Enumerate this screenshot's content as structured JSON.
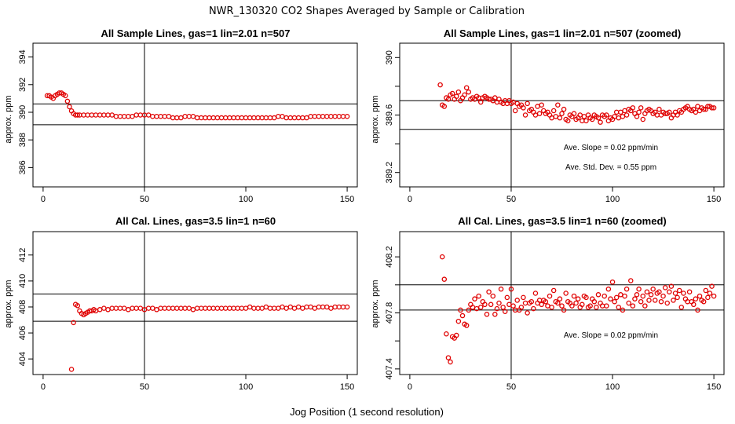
{
  "figure": {
    "title": "NWR_130320  CO2 Shapes Averaged by Sample or Calibration",
    "xlabel": "Jog Position (1 second resolution)"
  },
  "chart_data": [
    {
      "type": "scatter",
      "title": "All Sample Lines, gas=1 lin=2.01 n=507",
      "xlabel": "",
      "ylabel": "approx. ppm",
      "xlim": [
        -5,
        155
      ],
      "ylim": [
        384.6,
        395.0
      ],
      "xticks": [
        0,
        50,
        100,
        150
      ],
      "yticks": [
        386,
        388,
        390,
        392,
        394
      ],
      "vline": 50,
      "hlines": [
        390.6,
        389.1
      ],
      "point_color": "#e00000",
      "x": [
        2,
        3,
        4,
        5,
        6,
        7,
        8,
        9,
        10,
        11,
        12,
        13,
        14,
        15,
        16,
        17,
        18,
        20,
        22,
        24,
        26,
        28,
        30,
        32,
        34,
        36,
        38,
        40,
        42,
        44,
        46,
        48,
        50,
        52,
        54,
        56,
        58,
        60,
        62,
        64,
        66,
        68,
        70,
        72,
        74,
        76,
        78,
        80,
        82,
        84,
        86,
        88,
        90,
        92,
        94,
        96,
        98,
        100,
        102,
        104,
        106,
        108,
        110,
        112,
        114,
        116,
        118,
        120,
        122,
        124,
        126,
        128,
        130,
        132,
        134,
        136,
        138,
        140,
        142,
        144,
        146,
        148,
        150
      ],
      "y": [
        391.2,
        391.2,
        391.1,
        391.0,
        391.2,
        391.3,
        391.4,
        391.4,
        391.3,
        391.2,
        390.8,
        390.4,
        390.1,
        389.9,
        389.8,
        389.8,
        389.8,
        389.8,
        389.8,
        389.8,
        389.8,
        389.8,
        389.8,
        389.8,
        389.8,
        389.7,
        389.7,
        389.7,
        389.7,
        389.7,
        389.8,
        389.8,
        389.8,
        389.8,
        389.7,
        389.7,
        389.7,
        389.7,
        389.7,
        389.6,
        389.6,
        389.6,
        389.7,
        389.7,
        389.7,
        389.6,
        389.6,
        389.6,
        389.6,
        389.6,
        389.6,
        389.6,
        389.6,
        389.6,
        389.6,
        389.6,
        389.6,
        389.6,
        389.6,
        389.6,
        389.6,
        389.6,
        389.6,
        389.6,
        389.6,
        389.7,
        389.7,
        389.6,
        389.6,
        389.6,
        389.6,
        389.6,
        389.6,
        389.7,
        389.7,
        389.7,
        389.7,
        389.7,
        389.7,
        389.7,
        389.7,
        389.7,
        389.7
      ],
      "annotations": []
    },
    {
      "type": "scatter",
      "title": "All Sample Lines, gas=1 lin=2.01 n=507 (zoomed)",
      "xlabel": "",
      "ylabel": "approx. ppm",
      "xlim": [
        -5,
        155
      ],
      "ylim": [
        389.1,
        390.1
      ],
      "xticks": [
        0,
        50,
        100,
        150
      ],
      "yticks": [
        389.2,
        389.6,
        390.0
      ],
      "minor_yticks": [
        389.4,
        389.8
      ],
      "vline": 50,
      "hlines": [
        389.7,
        389.5
      ],
      "point_color": "#e00000",
      "x": [
        14,
        15,
        16,
        17,
        18,
        19,
        20,
        21,
        22,
        23,
        24,
        25,
        26,
        27,
        28,
        29,
        30,
        31,
        32,
        33,
        34,
        35,
        36,
        37,
        38,
        39,
        40,
        41,
        42,
        43,
        44,
        45,
        46,
        47,
        48,
        49,
        50,
        51,
        52,
        53,
        54,
        55,
        56,
        57,
        58,
        59,
        60,
        61,
        62,
        63,
        64,
        65,
        66,
        67,
        68,
        69,
        70,
        71,
        72,
        73,
        74,
        75,
        76,
        77,
        78,
        79,
        80,
        81,
        82,
        83,
        84,
        85,
        86,
        87,
        88,
        89,
        90,
        91,
        92,
        93,
        94,
        95,
        96,
        97,
        98,
        99,
        100,
        101,
        102,
        103,
        104,
        105,
        106,
        107,
        108,
        109,
        110,
        111,
        112,
        113,
        114,
        115,
        116,
        117,
        118,
        119,
        120,
        121,
        122,
        123,
        124,
        125,
        126,
        127,
        128,
        129,
        130,
        131,
        132,
        133,
        134,
        135,
        136,
        137,
        138,
        139,
        140,
        141,
        142,
        143,
        144,
        145,
        146,
        147,
        148,
        149,
        150
      ],
      "y": [
        390.13,
        389.81,
        389.67,
        389.66,
        389.72,
        389.71,
        389.74,
        389.75,
        389.71,
        389.73,
        389.76,
        389.7,
        389.72,
        389.74,
        389.79,
        389.76,
        389.71,
        389.72,
        389.71,
        389.73,
        389.72,
        389.69,
        389.72,
        389.73,
        389.72,
        389.71,
        389.71,
        389.7,
        389.72,
        389.69,
        389.71,
        389.69,
        389.68,
        389.7,
        389.68,
        389.7,
        389.68,
        389.69,
        389.63,
        389.68,
        389.66,
        389.67,
        389.65,
        389.6,
        389.68,
        389.63,
        389.64,
        389.62,
        389.6,
        389.66,
        389.61,
        389.67,
        389.63,
        389.61,
        389.62,
        389.6,
        389.58,
        389.63,
        389.59,
        389.67,
        389.58,
        389.61,
        389.64,
        389.57,
        389.56,
        389.6,
        389.59,
        389.61,
        389.57,
        389.58,
        389.6,
        389.56,
        389.59,
        389.56,
        389.6,
        389.58,
        389.57,
        389.6,
        389.59,
        389.58,
        389.55,
        389.6,
        389.59,
        389.6,
        389.56,
        389.58,
        389.57,
        389.59,
        389.62,
        389.58,
        389.62,
        389.59,
        389.63,
        389.6,
        389.64,
        389.63,
        389.65,
        389.61,
        389.59,
        389.62,
        389.65,
        389.57,
        389.61,
        389.63,
        389.64,
        389.63,
        389.61,
        389.62,
        389.6,
        389.64,
        389.6,
        389.62,
        389.61,
        389.61,
        389.62,
        389.58,
        389.6,
        389.62,
        389.6,
        389.63,
        389.62,
        389.64,
        389.65,
        389.66,
        389.64,
        389.63,
        389.64,
        389.62,
        389.66,
        389.63,
        389.65,
        389.64,
        389.64,
        389.66,
        389.66,
        389.65,
        389.65
      ],
      "annotations": [
        "Ave. Slope =  0.02  ppm/min",
        "Ave. Std. Dev. =  0.55  ppm"
      ]
    },
    {
      "type": "scatter",
      "title": "All Cal. Lines, gas=3.5 lin=1 n=60",
      "xlabel": "",
      "ylabel": "approx. ppm",
      "xlim": [
        -5,
        155
      ],
      "ylim": [
        402.8,
        413.8
      ],
      "xticks": [
        0,
        50,
        100,
        150
      ],
      "yticks": [
        404,
        406,
        408,
        410,
        412
      ],
      "vline": 50,
      "hlines": [
        409.0,
        406.9
      ],
      "point_color": "#e00000",
      "x": [
        14,
        15,
        16,
        17,
        18,
        19,
        20,
        21,
        22,
        23,
        24,
        25,
        26,
        28,
        30,
        32,
        34,
        36,
        38,
        40,
        42,
        44,
        46,
        48,
        50,
        52,
        54,
        56,
        58,
        60,
        62,
        64,
        66,
        68,
        70,
        72,
        74,
        76,
        78,
        80,
        82,
        84,
        86,
        88,
        90,
        92,
        94,
        96,
        98,
        100,
        102,
        104,
        106,
        108,
        110,
        112,
        114,
        116,
        118,
        120,
        122,
        124,
        126,
        128,
        130,
        132,
        134,
        136,
        138,
        140,
        142,
        144,
        146,
        148,
        150
      ],
      "y": [
        403.2,
        406.8,
        408.2,
        408.1,
        407.7,
        407.5,
        407.4,
        407.5,
        407.6,
        407.7,
        407.7,
        407.8,
        407.7,
        407.8,
        407.9,
        407.8,
        407.9,
        407.9,
        407.9,
        407.9,
        407.8,
        407.9,
        407.9,
        407.9,
        407.8,
        407.9,
        407.9,
        407.8,
        407.9,
        407.9,
        407.9,
        407.9,
        407.9,
        407.9,
        407.9,
        407.9,
        407.8,
        407.9,
        407.9,
        407.9,
        407.9,
        407.9,
        407.9,
        407.9,
        407.9,
        407.9,
        407.9,
        407.9,
        407.9,
        407.9,
        408.0,
        407.9,
        407.9,
        407.9,
        408.0,
        407.9,
        407.9,
        407.9,
        408.0,
        407.9,
        408.0,
        407.9,
        408.0,
        407.9,
        408.0,
        408.0,
        407.9,
        408.0,
        408.0,
        408.0,
        407.9,
        408.0,
        408.0,
        408.0,
        408.0
      ],
      "annotations": []
    },
    {
      "type": "scatter",
      "title": "All Cal. Lines, gas=3.5 lin=1 n=60 (zoomed)",
      "xlabel": "",
      "ylabel": "approx. ppm",
      "xlim": [
        -5,
        155
      ],
      "ylim": [
        407.36,
        408.38
      ],
      "xticks": [
        0,
        50,
        100,
        150
      ],
      "yticks": [
        407.4,
        407.8,
        408.2
      ],
      "minor_yticks": [
        407.6,
        408.0
      ],
      "vline": 50,
      "hlines": [
        408.0,
        407.82
      ],
      "point_color": "#e00000",
      "x": [
        16,
        17,
        18,
        19,
        20,
        21,
        22,
        23,
        24,
        25,
        26,
        27,
        28,
        29,
        30,
        31,
        32,
        33,
        34,
        35,
        36,
        37,
        38,
        39,
        40,
        41,
        42,
        43,
        44,
        45,
        46,
        47,
        48,
        49,
        50,
        51,
        52,
        53,
        54,
        55,
        56,
        57,
        58,
        59,
        60,
        61,
        62,
        63,
        64,
        65,
        66,
        67,
        68,
        69,
        70,
        71,
        72,
        73,
        74,
        75,
        76,
        77,
        78,
        79,
        80,
        81,
        82,
        83,
        84,
        85,
        86,
        87,
        88,
        89,
        90,
        91,
        92,
        93,
        94,
        95,
        96,
        97,
        98,
        99,
        100,
        101,
        102,
        103,
        104,
        105,
        106,
        107,
        108,
        109,
        110,
        111,
        112,
        113,
        114,
        115,
        116,
        117,
        118,
        119,
        120,
        121,
        122,
        123,
        124,
        125,
        126,
        127,
        128,
        129,
        130,
        131,
        132,
        133,
        134,
        135,
        136,
        137,
        138,
        139,
        140,
        141,
        142,
        143,
        144,
        145,
        146,
        147,
        148,
        149,
        150
      ],
      "y": [
        408.2,
        408.04,
        407.65,
        407.48,
        407.45,
        407.63,
        407.62,
        407.64,
        407.74,
        407.82,
        407.78,
        407.72,
        407.71,
        407.82,
        407.86,
        407.84,
        407.9,
        407.83,
        407.92,
        407.84,
        407.88,
        407.86,
        407.79,
        407.95,
        407.86,
        407.92,
        407.79,
        407.83,
        407.87,
        407.97,
        407.84,
        407.81,
        407.91,
        407.86,
        407.97,
        407.85,
        407.82,
        407.89,
        407.82,
        407.84,
        407.91,
        407.87,
        407.8,
        407.87,
        407.88,
        407.83,
        407.94,
        407.87,
        407.89,
        407.86,
        407.89,
        407.88,
        407.85,
        407.92,
        407.84,
        407.96,
        407.88,
        407.87,
        407.9,
        407.85,
        407.82,
        407.94,
        407.88,
        407.87,
        407.85,
        407.92,
        407.87,
        407.9,
        407.84,
        407.86,
        407.92,
        407.91,
        407.84,
        407.85,
        407.9,
        407.88,
        407.84,
        407.93,
        407.87,
        407.85,
        407.92,
        407.85,
        407.97,
        407.9,
        408.02,
        407.88,
        407.91,
        407.84,
        407.93,
        407.82,
        407.92,
        407.97,
        407.87,
        408.03,
        407.85,
        407.9,
        407.93,
        407.97,
        407.88,
        407.92,
        407.85,
        407.95,
        407.89,
        407.93,
        407.97,
        407.89,
        407.94,
        407.95,
        407.88,
        407.92,
        407.98,
        407.87,
        407.95,
        407.99,
        407.89,
        407.94,
        407.91,
        407.96,
        407.84,
        407.94,
        407.9,
        407.88,
        407.95,
        407.88,
        407.86,
        407.9,
        407.82,
        407.92,
        407.89,
        407.88,
        407.96,
        407.91,
        407.94,
        407.99,
        407.92
      ],
      "annotations": [
        "Ave. Slope =  0.02  ppm/min"
      ]
    }
  ]
}
